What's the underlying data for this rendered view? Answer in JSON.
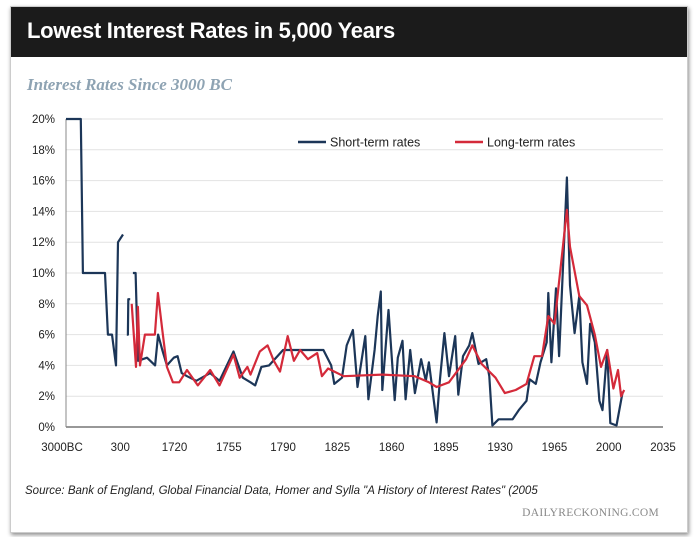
{
  "header": {
    "title": "Lowest Interest Rates in 5,000 Years"
  },
  "footer": {
    "source": "Source: Bank of England, Global Financial Data, Homer and Sylla \"A History of Interest Rates\" (2005",
    "brand": "DAILYRECKONING.COM"
  },
  "colors": {
    "short": "#1c3658",
    "long": "#d42a3a",
    "grid": "#e2e2e2",
    "title_bar": "#1b1b1b"
  },
  "chart_data": {
    "type": "line",
    "title": "Interest Rates Since 3000 BC",
    "xlabel": "",
    "ylabel": "",
    "x_ticks": [
      -3000,
      300,
      1720,
      1755,
      1790,
      1825,
      1860,
      1895,
      1930,
      1965,
      2000,
      2035
    ],
    "x_tick_labels": [
      "3000BC",
      "300",
      "1720",
      "1755",
      "1790",
      "1825",
      "1860",
      "1895",
      "1930",
      "1965",
      "2000",
      "2035"
    ],
    "x_scale": "non-uniform (equal spacing between tick labels)",
    "ylim": [
      0,
      20
    ],
    "y_ticks": [
      0,
      2,
      4,
      6,
      8,
      10,
      12,
      14,
      16,
      18,
      20
    ],
    "y_tick_labels": [
      "0%",
      "2%",
      "4%",
      "6%",
      "8%",
      "10%",
      "12%",
      "14%",
      "16%",
      "18%",
      "20%"
    ],
    "grid": "horizontal",
    "legend": "top-center",
    "series": [
      {
        "name": "Short-term rates",
        "color": "#1c3658",
        "points": [
          [
            -3000,
            20
          ],
          [
            -2100,
            20
          ],
          [
            -1970,
            10
          ],
          [
            -630,
            10
          ],
          [
            -450,
            6
          ],
          [
            -200,
            6
          ],
          [
            40,
            4
          ],
          [
            160,
            12
          ],
          [
            371,
            12.5
          ],
          null,
          [
            470,
            6
          ],
          [
            500,
            6
          ],
          [
            510,
            8.3
          ],
          [
            560,
            8.3
          ],
          null,
          [
            630,
            10
          ],
          [
            700,
            10
          ],
          [
            763,
            4.3
          ],
          [
            1000,
            4.5
          ],
          [
            1210,
            4
          ],
          [
            1290,
            6
          ],
          [
            1400,
            5
          ],
          [
            1520,
            4
          ],
          [
            1700,
            4.5
          ],
          [
            1722,
            4.6
          ],
          [
            1724.6,
            3.5
          ],
          [
            1728,
            3.3
          ],
          [
            1734,
            3
          ],
          [
            1743,
            3.5
          ],
          [
            1749,
            3
          ],
          [
            1758,
            4.9
          ],
          [
            1764,
            3.2
          ],
          [
            1769,
            2.9
          ],
          [
            1772,
            2.7
          ],
          [
            1776,
            3.9
          ],
          [
            1781,
            4
          ],
          [
            1790,
            5
          ],
          [
            1816,
            5
          ],
          [
            1821,
            4
          ],
          [
            1823,
            2.8
          ],
          [
            1828,
            3.2
          ],
          [
            1831,
            5.3
          ],
          [
            1835,
            6.3
          ],
          [
            1838,
            2.6
          ],
          [
            1843,
            5.9
          ],
          [
            1845,
            1.8
          ],
          [
            1849,
            5
          ],
          [
            1851,
            7.2
          ],
          [
            1853,
            8.8
          ],
          [
            1854,
            2.4
          ],
          [
            1856,
            5
          ],
          [
            1858,
            7.6
          ],
          [
            1862,
            1.75
          ],
          [
            1864,
            4.5
          ],
          [
            1867,
            5.6
          ],
          [
            1869,
            1.8
          ],
          [
            1872,
            5
          ],
          [
            1875,
            2.2
          ],
          [
            1879,
            4.4
          ],
          [
            1882,
            3
          ],
          [
            1884,
            4.2
          ],
          [
            1889,
            0.3
          ],
          [
            1891,
            2.9
          ],
          [
            1894,
            6.1
          ],
          [
            1897,
            3.3
          ],
          [
            1901,
            5.9
          ],
          [
            1903,
            2.1
          ],
          [
            1906,
            4.6
          ],
          [
            1910,
            5.3
          ],
          [
            1912,
            6.1
          ],
          [
            1916,
            4.1
          ],
          [
            1921,
            4.4
          ],
          [
            1923,
            3.3
          ],
          [
            1925,
            0.1
          ],
          [
            1929,
            0.5
          ],
          [
            1938,
            0.5
          ],
          [
            1942,
            1.1
          ],
          [
            1947,
            1.7
          ],
          [
            1949,
            3.1
          ],
          [
            1953,
            2.8
          ],
          [
            1956,
            4.2
          ],
          [
            1960,
            5.5
          ],
          [
            1961,
            8.7
          ],
          [
            1963,
            4.2
          ],
          [
            1966,
            9
          ],
          [
            1968,
            4.6
          ],
          [
            1973,
            16.2
          ],
          [
            1975,
            9.2
          ],
          [
            1978,
            6.1
          ],
          [
            1981,
            8.5
          ],
          [
            1983,
            4.2
          ],
          [
            1986,
            2.8
          ],
          [
            1988,
            6.7
          ],
          [
            1991,
            5.5
          ],
          [
            1994,
            1.7
          ],
          [
            1996,
            1.1
          ],
          [
            1999,
            5
          ],
          [
            2001,
            0.25
          ],
          [
            2005,
            0.1
          ],
          [
            2009,
            2.3
          ]
        ]
      },
      {
        "name": "Long-term rates",
        "color": "#d42a3a",
        "points": [
          [
            598,
            8
          ],
          [
            711,
            3.9
          ],
          [
            760,
            7.8
          ],
          [
            815,
            4
          ],
          [
            945,
            6
          ],
          [
            1206,
            6
          ],
          [
            1285,
            8.7
          ],
          [
            1400,
            6.3
          ],
          [
            1520,
            3.9
          ],
          [
            1677,
            2.9
          ],
          [
            1723,
            2.9
          ],
          [
            1728,
            3.7
          ],
          [
            1735,
            2.7
          ],
          [
            1743,
            3.7
          ],
          [
            1749,
            2.7
          ],
          [
            1758,
            4.7
          ],
          [
            1762,
            3.2
          ],
          [
            1767,
            3.9
          ],
          [
            1769,
            3.4
          ],
          [
            1775,
            4.9
          ],
          [
            1780,
            5.3
          ],
          [
            1784,
            4.3
          ],
          [
            1788,
            3.6
          ],
          [
            1793,
            5.9
          ],
          [
            1797,
            4.3
          ],
          [
            1801,
            5
          ],
          [
            1806,
            4.4
          ],
          [
            1812,
            4.8
          ],
          [
            1815,
            3.3
          ],
          [
            1819,
            3.8
          ],
          [
            1829,
            3.3
          ],
          [
            1854,
            3.4
          ],
          [
            1875,
            3.3
          ],
          [
            1884,
            2.9
          ],
          [
            1889,
            2.6
          ],
          [
            1897,
            2.9
          ],
          [
            1908,
            4.4
          ],
          [
            1912,
            5.3
          ],
          [
            1918,
            4.1
          ],
          [
            1927,
            3.2
          ],
          [
            1933,
            2.2
          ],
          [
            1940,
            2.4
          ],
          [
            1947,
            2.8
          ],
          [
            1952,
            4.6
          ],
          [
            1957,
            4.6
          ],
          [
            1961,
            7.2
          ],
          [
            1965,
            6.7
          ],
          [
            1973,
            14.1
          ],
          [
            1975,
            11.7
          ],
          [
            1981,
            8.5
          ],
          [
            1986,
            7.9
          ],
          [
            1991,
            6
          ],
          [
            1995,
            3.9
          ],
          [
            1999,
            5
          ],
          [
            2003,
            2.5
          ],
          [
            2006,
            3.7
          ],
          [
            2008,
            2
          ],
          [
            2010,
            2.4
          ]
        ]
      }
    ]
  }
}
